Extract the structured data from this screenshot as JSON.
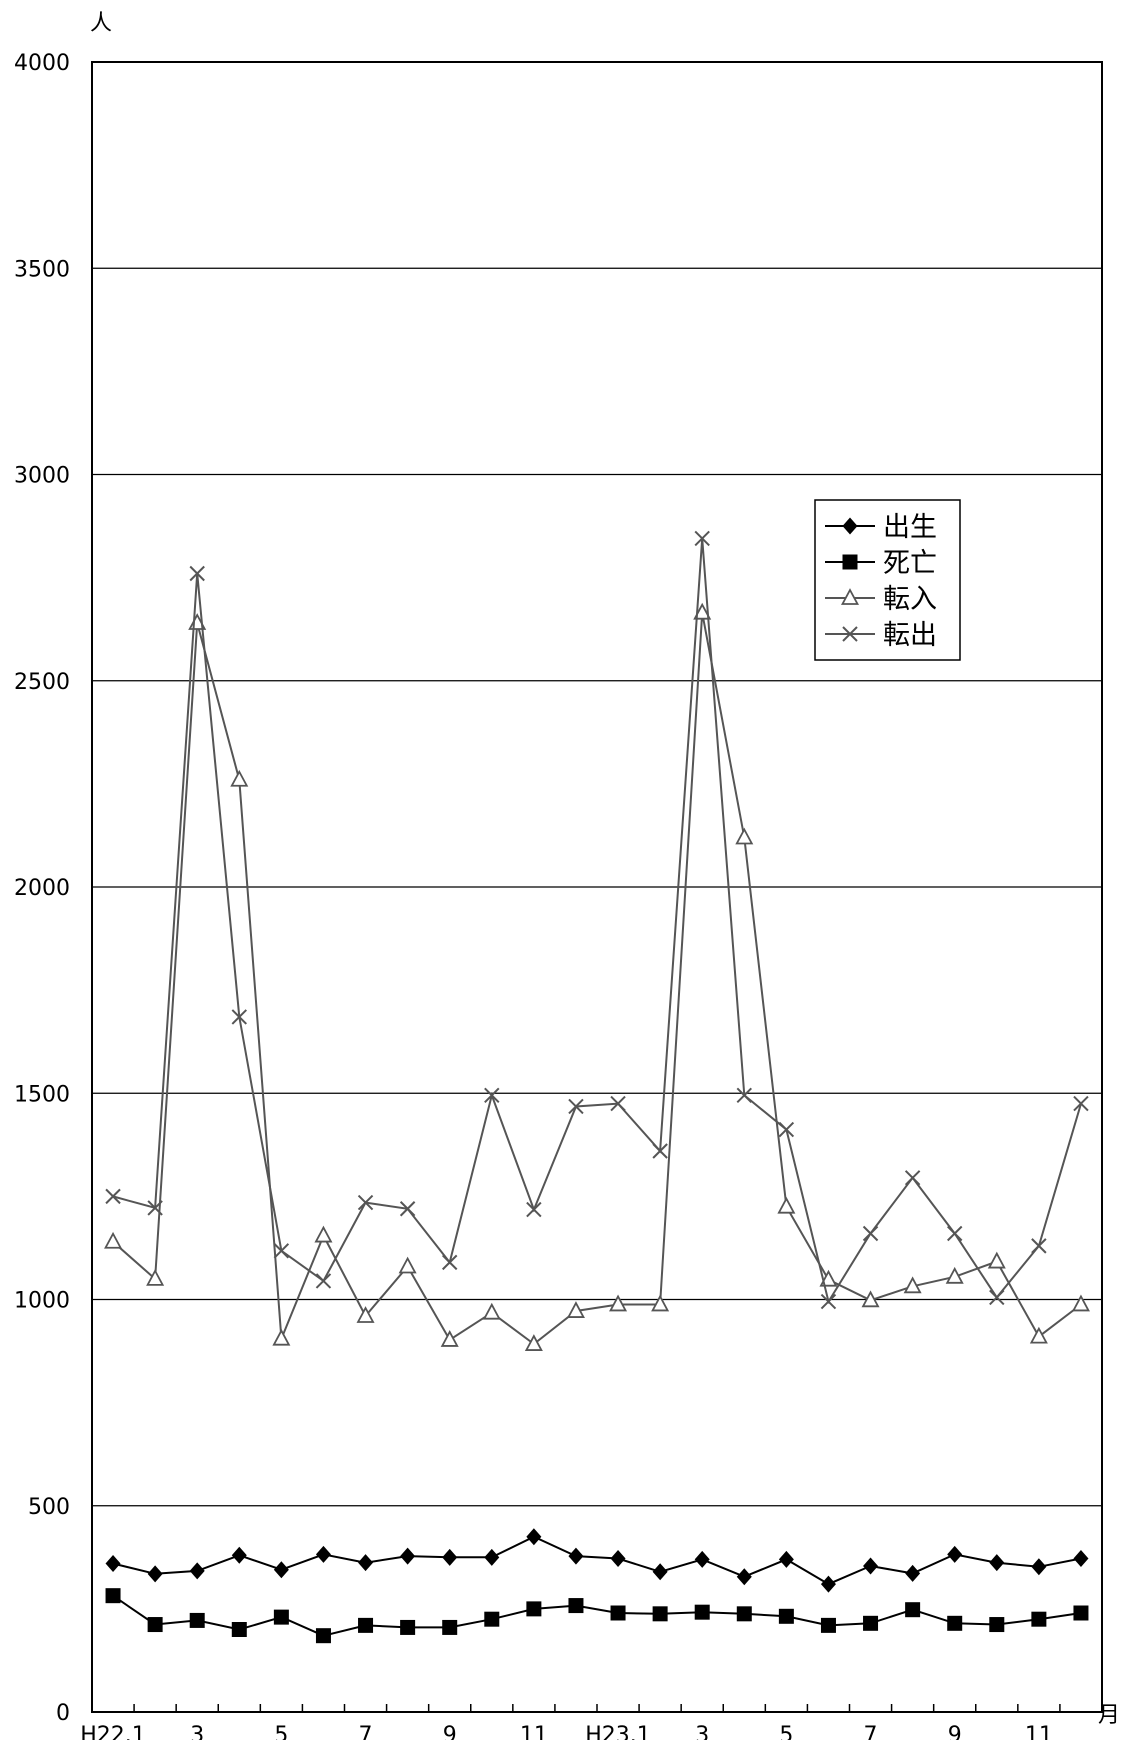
{
  "chart_data": {
    "type": "line",
    "ylabel": "人",
    "xlabel": "月",
    "ylim": [
      0,
      4000
    ],
    "y_ticks": [
      0,
      500,
      1000,
      1500,
      2000,
      2500,
      3000,
      3500,
      4000
    ],
    "x_tick_labels": [
      "H22.1",
      "3",
      "5",
      "7",
      "9",
      "11",
      "H23.1",
      "3",
      "5",
      "7",
      "9",
      "11"
    ],
    "categories": [
      "H22.1",
      "H22.2",
      "H22.3",
      "H22.4",
      "H22.5",
      "H22.6",
      "H22.7",
      "H22.8",
      "H22.9",
      "H22.10",
      "H22.11",
      "H22.12",
      "H23.1",
      "H23.2",
      "H23.3",
      "H23.4",
      "H23.5",
      "H23.6",
      "H23.7",
      "H23.8",
      "H23.9",
      "H23.10",
      "H23.11",
      "H23.12"
    ],
    "grid": true,
    "legend_position": "center-right",
    "series": [
      {
        "name": "出生",
        "marker": "diamond",
        "color": "#000000",
        "values": [
          360,
          335,
          342,
          380,
          345,
          382,
          362,
          378,
          375,
          375,
          425,
          378,
          372,
          340,
          370,
          328,
          370,
          310,
          354,
          336,
          382,
          362,
          352,
          372
        ]
      },
      {
        "name": "死亡",
        "marker": "square",
        "color": "#000000",
        "values": [
          282,
          212,
          222,
          200,
          230,
          185,
          210,
          205,
          205,
          225,
          250,
          258,
          240,
          238,
          242,
          238,
          232,
          210,
          215,
          248,
          215,
          212,
          225,
          240
        ]
      },
      {
        "name": "転入",
        "marker": "triangle",
        "color": "#555555",
        "values": [
          1140,
          1050,
          2640,
          2260,
          905,
          1155,
          960,
          1080,
          902,
          968,
          892,
          972,
          988,
          988,
          2665,
          2120,
          1225,
          1048,
          998,
          1032,
          1055,
          1092,
          910,
          988
        ]
      },
      {
        "name": "転出",
        "marker": "x",
        "color": "#555555",
        "values": [
          1250,
          1222,
          2760,
          1685,
          1118,
          1045,
          1235,
          1220,
          1090,
          1495,
          1218,
          1468,
          1475,
          1360,
          2845,
          1495,
          1412,
          995,
          1160,
          1295,
          1160,
          1005,
          1130,
          1475
        ]
      }
    ]
  }
}
